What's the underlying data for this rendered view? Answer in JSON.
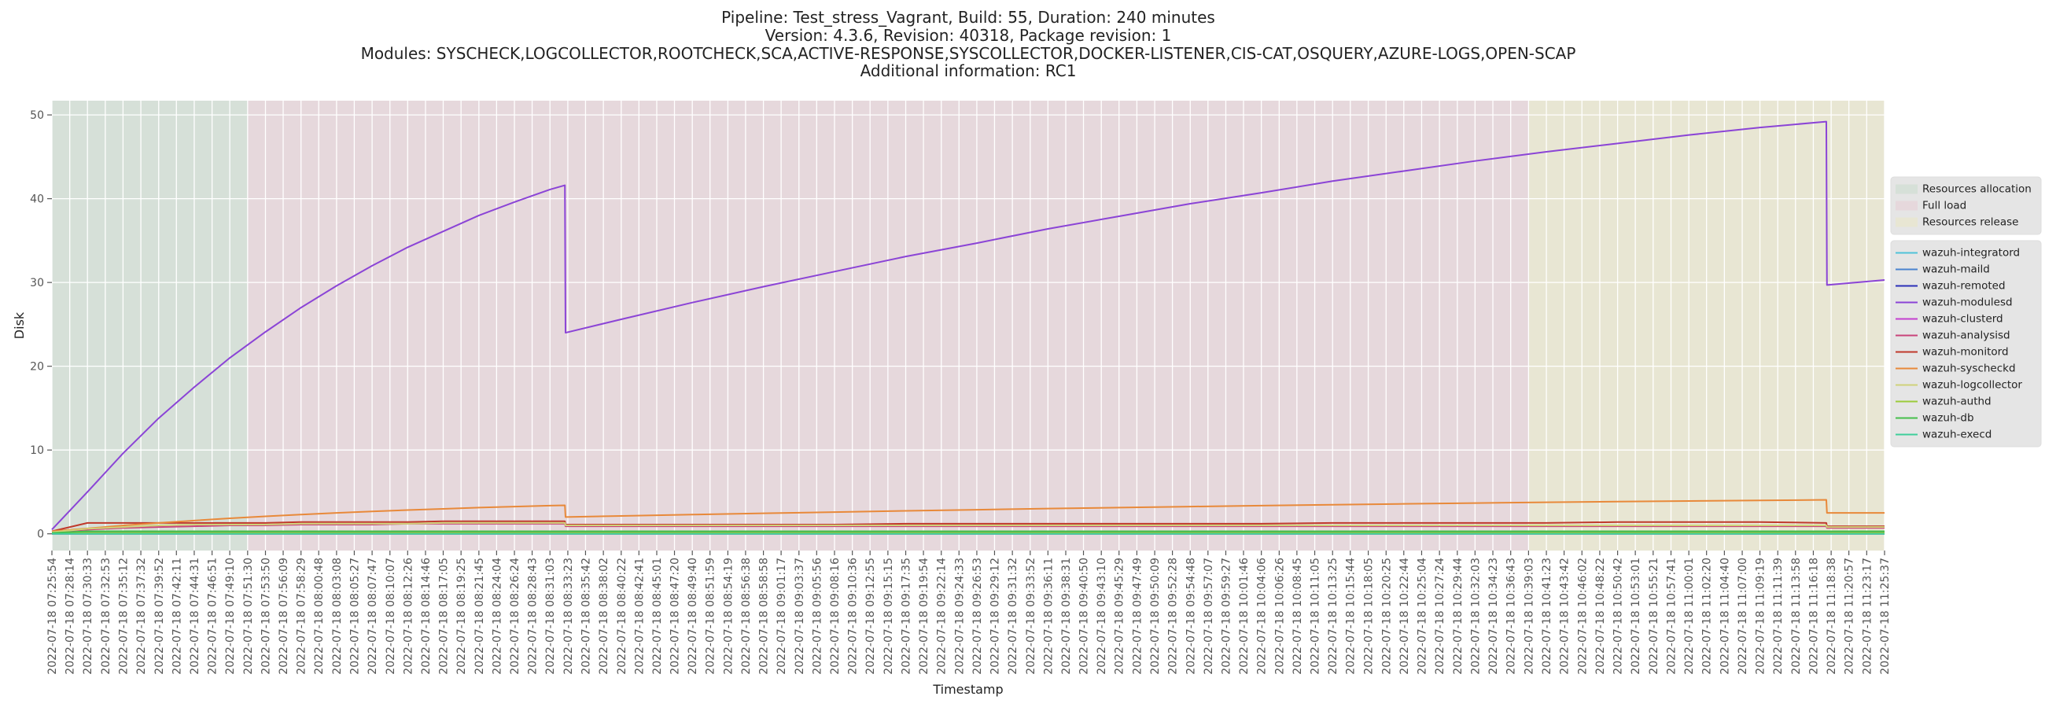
{
  "chart_data": {
    "type": "line",
    "title": [
      "Pipeline: Test_stress_Vagrant, Build: 55, Duration: 240 minutes",
      "Version: 4.3.6, Revision: 40318, Package revision: 1",
      "Modules: SYSCHECK,LOGCOLLECTOR,ROOTCHECK,SCA,ACTIVE-RESPONSE,SYSCOLLECTOR,DOCKER-LISTENER,CIS-CAT,OSQUERY,AZURE-LOGS,OPEN-SCAP",
      "Additional information: RC1"
    ],
    "x_label": "Timestamp",
    "y_label": "Disk",
    "grid": true,
    "legend": "outside right",
    "xlim": [
      "2022-07-18 07:25:54",
      "2022-07-18 11:25:37"
    ],
    "ylim": [
      -2,
      51.7
    ],
    "yticks": [
      0,
      10,
      20,
      30,
      40,
      50
    ],
    "xticks": [
      "2022-07-18 07:25:54",
      "2022-07-18 07:28:14",
      "2022-07-18 07:30:33",
      "2022-07-18 07:32:53",
      "2022-07-18 07:35:12",
      "2022-07-18 07:37:32",
      "2022-07-18 07:39:52",
      "2022-07-18 07:42:11",
      "2022-07-18 07:44:31",
      "2022-07-18 07:46:51",
      "2022-07-18 07:49:10",
      "2022-07-18 07:51:30",
      "2022-07-18 07:53:50",
      "2022-07-18 07:56:09",
      "2022-07-18 07:58:29",
      "2022-07-18 08:00:48",
      "2022-07-18 08:03:08",
      "2022-07-18 08:05:27",
      "2022-07-18 08:07:47",
      "2022-07-18 08:10:07",
      "2022-07-18 08:12:26",
      "2022-07-18 08:14:46",
      "2022-07-18 08:17:05",
      "2022-07-18 08:19:25",
      "2022-07-18 08:21:45",
      "2022-07-18 08:24:04",
      "2022-07-18 08:26:24",
      "2022-07-18 08:28:43",
      "2022-07-18 08:31:03",
      "2022-07-18 08:33:23",
      "2022-07-18 08:35:42",
      "2022-07-18 08:38:02",
      "2022-07-18 08:40:22",
      "2022-07-18 08:42:41",
      "2022-07-18 08:45:01",
      "2022-07-18 08:47:20",
      "2022-07-18 08:49:40",
      "2022-07-18 08:51:59",
      "2022-07-18 08:54:19",
      "2022-07-18 08:56:38",
      "2022-07-18 08:58:58",
      "2022-07-18 09:01:17",
      "2022-07-18 09:03:37",
      "2022-07-18 09:05:56",
      "2022-07-18 09:08:16",
      "2022-07-18 09:10:36",
      "2022-07-18 09:12:55",
      "2022-07-18 09:15:15",
      "2022-07-18 09:17:35",
      "2022-07-18 09:19:54",
      "2022-07-18 09:22:14",
      "2022-07-18 09:24:33",
      "2022-07-18 09:26:53",
      "2022-07-18 09:29:12",
      "2022-07-18 09:31:32",
      "2022-07-18 09:33:52",
      "2022-07-18 09:36:11",
      "2022-07-18 09:38:31",
      "2022-07-18 09:40:50",
      "2022-07-18 09:43:10",
      "2022-07-18 09:45:29",
      "2022-07-18 09:47:49",
      "2022-07-18 09:50:09",
      "2022-07-18 09:52:28",
      "2022-07-18 09:54:48",
      "2022-07-18 09:57:07",
      "2022-07-18 09:59:27",
      "2022-07-18 10:01:46",
      "2022-07-18 10:04:06",
      "2022-07-18 10:06:26",
      "2022-07-18 10:08:45",
      "2022-07-18 10:11:05",
      "2022-07-18 10:13:25",
      "2022-07-18 10:15:44",
      "2022-07-18 10:18:05",
      "2022-07-18 10:20:25",
      "2022-07-18 10:22:44",
      "2022-07-18 10:25:04",
      "2022-07-18 10:27:24",
      "2022-07-18 10:29:44",
      "2022-07-18 10:32:03",
      "2022-07-18 10:34:23",
      "2022-07-18 10:36:43",
      "2022-07-18 10:39:03",
      "2022-07-18 10:41:23",
      "2022-07-18 10:43:42",
      "2022-07-18 10:46:02",
      "2022-07-18 10:48:22",
      "2022-07-18 10:50:42",
      "2022-07-18 10:53:01",
      "2022-07-18 10:55:21",
      "2022-07-18 10:57:41",
      "2022-07-18 11:00:01",
      "2022-07-18 11:02:20",
      "2022-07-18 11:04:40",
      "2022-07-18 11:07:00",
      "2022-07-18 11:09:19",
      "2022-07-18 11:11:39",
      "2022-07-18 11:13:58",
      "2022-07-18 11:16:18",
      "2022-07-18 11:18:38",
      "2022-07-18 11:20:57",
      "2022-07-18 11:23:17",
      "2022-07-18 11:25:37"
    ],
    "spans": [
      {
        "name": "Resources allocation",
        "color": "#d6e0d8",
        "start": "2022-07-18 07:25:54",
        "end": "2022-07-18 07:51:30"
      },
      {
        "name": "Full load",
        "color": "#e6d8dc",
        "start": "2022-07-18 07:51:30",
        "end": "2022-07-18 10:39:03"
      },
      {
        "name": "Resources release",
        "color": "#e8e6d3",
        "start": "2022-07-18 10:39:03",
        "end": "2022-07-18 11:25:37"
      }
    ],
    "x": [
      "2022-07-18 07:25:54",
      "2022-07-18 07:30:33",
      "2022-07-18 07:35:12",
      "2022-07-18 07:39:52",
      "2022-07-18 07:44:31",
      "2022-07-18 07:49:10",
      "2022-07-18 07:53:50",
      "2022-07-18 07:58:29",
      "2022-07-18 08:03:08",
      "2022-07-18 08:07:47",
      "2022-07-18 08:12:26",
      "2022-07-18 08:17:05",
      "2022-07-18 08:21:45",
      "2022-07-18 08:26:24",
      "2022-07-18 08:31:03",
      "2022-07-18 08:33:00",
      "2022-07-18 08:33:05",
      "2022-07-18 08:40:22",
      "2022-07-18 08:49:40",
      "2022-07-18 08:58:58",
      "2022-07-18 09:08:16",
      "2022-07-18 09:17:35",
      "2022-07-18 09:26:53",
      "2022-07-18 09:36:11",
      "2022-07-18 09:45:29",
      "2022-07-18 09:54:48",
      "2022-07-18 10:04:06",
      "2022-07-18 10:13:25",
      "2022-07-18 10:22:44",
      "2022-07-18 10:32:03",
      "2022-07-18 10:41:23",
      "2022-07-18 10:50:42",
      "2022-07-18 11:00:01",
      "2022-07-18 11:09:19",
      "2022-07-18 11:18:00",
      "2022-07-18 11:18:05",
      "2022-07-18 11:25:37"
    ],
    "series": [
      {
        "name": "wazuh-integratord",
        "color": "#4fc3d9",
        "values": [
          0,
          0,
          0,
          0,
          0,
          0,
          0,
          0,
          0,
          0,
          0,
          0,
          0,
          0,
          0,
          0,
          0,
          0,
          0,
          0,
          0,
          0,
          0,
          0,
          0,
          0,
          0,
          0,
          0,
          0,
          0,
          0,
          0,
          0,
          0,
          0,
          0
        ]
      },
      {
        "name": "wazuh-maild",
        "color": "#4a84d0",
        "values": [
          0.1,
          0.1,
          0.1,
          0.1,
          0.1,
          0.1,
          0.1,
          0.1,
          0.1,
          0.1,
          0.1,
          0.1,
          0.1,
          0.1,
          0.1,
          0.1,
          0.1,
          0.1,
          0.1,
          0.1,
          0.1,
          0.1,
          0.1,
          0.1,
          0.1,
          0.1,
          0.1,
          0.1,
          0.1,
          0.1,
          0.1,
          0.1,
          0.1,
          0.1,
          0.1,
          0.1,
          0.1
        ]
      },
      {
        "name": "wazuh-remoted",
        "color": "#2b2fb8",
        "values": [
          0.1,
          0.1,
          0.1,
          0.1,
          0.1,
          0.1,
          0.1,
          0.1,
          0.1,
          0.1,
          0.1,
          0.1,
          0.1,
          0.1,
          0.1,
          0.1,
          0.1,
          0.1,
          0.1,
          0.1,
          0.1,
          0.1,
          0.1,
          0.1,
          0.1,
          0.1,
          0.1,
          0.1,
          0.1,
          0.1,
          0.1,
          0.1,
          0.1,
          0.1,
          0.1,
          0.1,
          0.1
        ]
      },
      {
        "name": "wazuh-modulesd",
        "color": "#8b44d6",
        "values": [
          0.5,
          5.0,
          9.6,
          13.8,
          17.5,
          21.0,
          24.1,
          27.0,
          29.6,
          32.0,
          34.2,
          36.1,
          38.0,
          39.6,
          41.1,
          41.6,
          24.0,
          25.6,
          27.6,
          29.5,
          31.3,
          33.1,
          34.7,
          36.4,
          37.9,
          39.4,
          40.7,
          42.1,
          43.3,
          44.5,
          45.6,
          46.6,
          47.6,
          48.5,
          49.2,
          29.7,
          30.3
        ]
      },
      {
        "name": "wazuh-clusterd",
        "color": "#c43fd0",
        "values": [
          0,
          0,
          0,
          0,
          0,
          0,
          0,
          0,
          0,
          0,
          0,
          0,
          0,
          0,
          0,
          0,
          0,
          0,
          0,
          0,
          0,
          0,
          0,
          0,
          0,
          0,
          0,
          0,
          0,
          0,
          0,
          0,
          0,
          0,
          0,
          0,
          0
        ]
      },
      {
        "name": "wazuh-analysisd",
        "color": "#c9437a",
        "values": [
          0.2,
          0.5,
          0.7,
          0.8,
          0.9,
          1.0,
          1.0,
          1.1,
          1.1,
          1.1,
          1.2,
          1.2,
          1.2,
          1.2,
          1.2,
          1.2,
          0.9,
          0.9,
          0.9,
          0.9,
          0.9,
          0.9,
          0.9,
          0.9,
          0.9,
          0.9,
          0.9,
          0.9,
          0.9,
          0.9,
          0.9,
          0.9,
          0.9,
          0.9,
          0.9,
          0.7,
          0.7
        ]
      },
      {
        "name": "wazuh-monitord",
        "color": "#c0392b",
        "values": [
          0.3,
          1.3,
          1.3,
          1.3,
          1.3,
          1.3,
          1.3,
          1.4,
          1.4,
          1.4,
          1.4,
          1.5,
          1.5,
          1.5,
          1.5,
          1.5,
          1.1,
          1.1,
          1.1,
          1.1,
          1.1,
          1.2,
          1.2,
          1.2,
          1.2,
          1.2,
          1.2,
          1.3,
          1.3,
          1.3,
          1.3,
          1.4,
          1.4,
          1.4,
          1.3,
          0.9,
          0.9
        ]
      },
      {
        "name": "wazuh-syscheckd",
        "color": "#e8893a",
        "values": [
          0.3,
          0.64,
          0.99,
          1.3,
          1.58,
          1.85,
          2.08,
          2.3,
          2.49,
          2.67,
          2.84,
          2.98,
          3.13,
          3.25,
          3.36,
          3.4,
          2.0,
          2.13,
          2.29,
          2.45,
          2.59,
          2.74,
          2.87,
          3.01,
          3.13,
          3.25,
          3.36,
          3.47,
          3.57,
          3.67,
          3.76,
          3.84,
          3.92,
          3.99,
          4.05,
          2.5,
          2.5
        ]
      },
      {
        "name": "wazuh-logcollector",
        "color": "#cfd27a",
        "values": [
          0.2,
          0.6,
          0.8,
          1.0,
          1.1,
          1.1,
          1.1,
          1.2,
          1.2,
          1.2,
          1.2,
          1.3,
          1.3,
          1.3,
          1.3,
          1.3,
          1.0,
          1.0,
          1.0,
          1.0,
          1.0,
          1.0,
          1.0,
          1.0,
          1.0,
          1.0,
          1.0,
          1.0,
          1.0,
          1.0,
          1.0,
          1.0,
          1.0,
          1.0,
          1.0,
          0.8,
          0.8
        ]
      },
      {
        "name": "wazuh-authd",
        "color": "#9ccc3a",
        "values": [
          0.1,
          0.1,
          0.1,
          0.1,
          0.1,
          0.1,
          0.1,
          0.1,
          0.1,
          0.1,
          0.1,
          0.1,
          0.1,
          0.1,
          0.1,
          0.1,
          0.1,
          0.1,
          0.1,
          0.1,
          0.1,
          0.1,
          0.1,
          0.1,
          0.1,
          0.1,
          0.1,
          0.1,
          0.1,
          0.1,
          0.1,
          0.1,
          0.1,
          0.1,
          0.1,
          0.1,
          0.1
        ]
      },
      {
        "name": "wazuh-db",
        "color": "#45bf4a",
        "values": [
          0.1,
          0.3,
          0.3,
          0.3,
          0.3,
          0.3,
          0.3,
          0.3,
          0.3,
          0.3,
          0.3,
          0.3,
          0.3,
          0.3,
          0.3,
          0.3,
          0.3,
          0.3,
          0.3,
          0.3,
          0.3,
          0.3,
          0.3,
          0.3,
          0.3,
          0.3,
          0.3,
          0.3,
          0.3,
          0.3,
          0.3,
          0.3,
          0.3,
          0.3,
          0.3,
          0.3,
          0.3
        ]
      },
      {
        "name": "wazuh-execd",
        "color": "#3ecf9a",
        "values": [
          0,
          0,
          0,
          0,
          0,
          0,
          0,
          0,
          0,
          0,
          0,
          0,
          0,
          0,
          0,
          0,
          0,
          0,
          0,
          0,
          0,
          0,
          0,
          0,
          0,
          0,
          0,
          0,
          0,
          0,
          0,
          0,
          0,
          0,
          0,
          0,
          0
        ]
      }
    ]
  }
}
